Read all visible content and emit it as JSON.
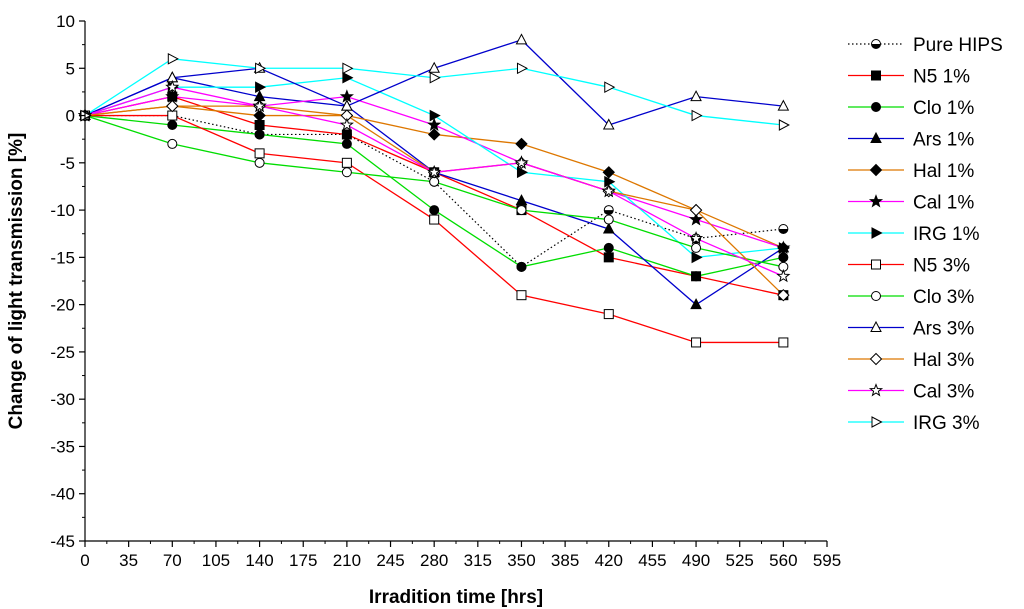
{
  "chart_data": {
    "type": "line",
    "title": "",
    "xlabel": "Irradition time [hrs]",
    "ylabel": "Change of light transmission [%]",
    "xlim": [
      0,
      595
    ],
    "ylim": [
      -45,
      10
    ],
    "x_ticks": [
      0,
      35,
      70,
      105,
      140,
      175,
      210,
      245,
      280,
      315,
      350,
      385,
      420,
      455,
      490,
      525,
      560,
      595
    ],
    "y_ticks": [
      10,
      5,
      0,
      -5,
      -10,
      -15,
      -20,
      -25,
      -30,
      -35,
      -40,
      -45
    ],
    "x": [
      0,
      70,
      140,
      210,
      280,
      350,
      420,
      490,
      560
    ],
    "legend_position": "right",
    "series": [
      {
        "name": "Pure HIPS",
        "color": "#000000",
        "dash": "dot",
        "marker": "halfcircle",
        "values": [
          0,
          0,
          -2,
          -2,
          -7,
          -16,
          -10,
          -13,
          -12
        ]
      },
      {
        "name": "N5 1%",
        "color": "#ff0000",
        "marker": "square-filled",
        "values": [
          0,
          2,
          -1,
          -2,
          -6,
          -10,
          -15,
          -17,
          -19
        ]
      },
      {
        "name": "Clo 1%",
        "color": "#00dd00",
        "marker": "circle-filled",
        "values": [
          0,
          -1,
          -2,
          -3,
          -10,
          -16,
          -14,
          -17,
          -15
        ]
      },
      {
        "name": "Ars 1%",
        "color": "#0000cc",
        "marker": "triangle-filled",
        "values": [
          0,
          4,
          2,
          1,
          -6,
          -9,
          -12,
          -20,
          -14
        ]
      },
      {
        "name": "Hal 1%",
        "color": "#dd7700",
        "marker": "diamond-filled",
        "values": [
          0,
          1,
          0,
          0,
          -2,
          -3,
          -6,
          -10,
          -14
        ]
      },
      {
        "name": "Cal 1%",
        "color": "#ff00ff",
        "marker": "star-filled",
        "values": [
          0,
          2,
          1,
          2,
          -1,
          -5,
          -8,
          -11,
          -14
        ]
      },
      {
        "name": "IRG 1%",
        "color": "#00ffff",
        "marker": "triangle-right-filled",
        "values": [
          0,
          3,
          3,
          4,
          0,
          -6,
          -7,
          -15,
          -14
        ]
      },
      {
        "name": "N5 3%",
        "color": "#ff0000",
        "marker": "square-open",
        "values": [
          0,
          0,
          -4,
          -5,
          -11,
          -19,
          -21,
          -24,
          -24
        ]
      },
      {
        "name": "Clo 3%",
        "color": "#00dd00",
        "marker": "circle-open",
        "values": [
          0,
          -3,
          -5,
          -6,
          -7,
          -10,
          -11,
          -14,
          -16
        ]
      },
      {
        "name": "Ars 3%",
        "color": "#0000cc",
        "marker": "triangle-open",
        "values": [
          0,
          4,
          5,
          1,
          5,
          8,
          -1,
          2,
          1
        ]
      },
      {
        "name": "Hal 3%",
        "color": "#dd7700",
        "marker": "diamond-open",
        "values": [
          0,
          1,
          1,
          0,
          -6,
          -5,
          -8,
          -10,
          -19
        ]
      },
      {
        "name": "Cal 3%",
        "color": "#ff00ff",
        "marker": "star-open",
        "values": [
          0,
          3,
          1,
          -1,
          -6,
          -5,
          -8,
          -13,
          -17
        ]
      },
      {
        "name": "IRG 3%",
        "color": "#00ffff",
        "marker": "triangle-right-open",
        "values": [
          0,
          6,
          5,
          5,
          4,
          5,
          3,
          0,
          -1
        ]
      }
    ]
  }
}
